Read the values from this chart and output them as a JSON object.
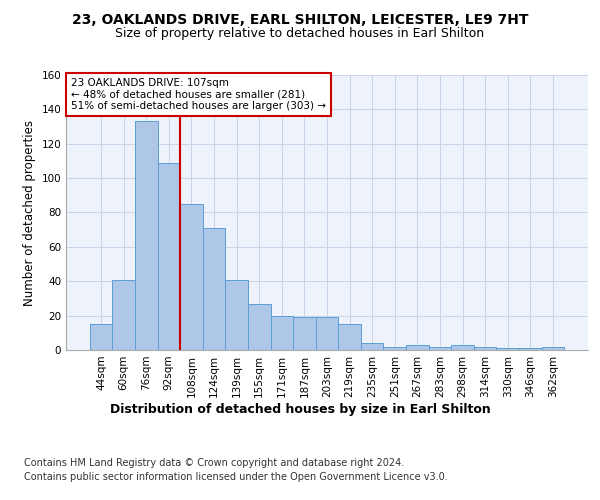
{
  "title": "23, OAKLANDS DRIVE, EARL SHILTON, LEICESTER, LE9 7HT",
  "subtitle": "Size of property relative to detached houses in Earl Shilton",
  "xlabel": "Distribution of detached houses by size in Earl Shilton",
  "ylabel": "Number of detached properties",
  "categories": [
    "44sqm",
    "60sqm",
    "76sqm",
    "92sqm",
    "108sqm",
    "124sqm",
    "139sqm",
    "155sqm",
    "171sqm",
    "187sqm",
    "203sqm",
    "219sqm",
    "235sqm",
    "251sqm",
    "267sqm",
    "283sqm",
    "298sqm",
    "314sqm",
    "330sqm",
    "346sqm",
    "362sqm"
  ],
  "values": [
    15,
    41,
    133,
    109,
    85,
    71,
    41,
    27,
    20,
    19,
    19,
    15,
    4,
    2,
    3,
    2,
    3,
    2,
    1,
    1,
    2
  ],
  "bar_color": "#aec6e8",
  "bar_edge_color": "#5a9fd4",
  "grid_color": "#c8d4e8",
  "bg_color": "#eef2fa",
  "property_line_x": 4,
  "property_line_color": "#cc0000",
  "annotation_text": "23 OAKLANDS DRIVE: 107sqm\n← 48% of detached houses are smaller (281)\n51% of semi-detached houses are larger (303) →",
  "annotation_box_color": "#ffffff",
  "annotation_box_edge": "#cc0000",
  "ylim": [
    0,
    160
  ],
  "yticks": [
    0,
    20,
    40,
    60,
    80,
    100,
    120,
    140,
    160
  ],
  "footer_line1": "Contains HM Land Registry data © Crown copyright and database right 2024.",
  "footer_line2": "Contains public sector information licensed under the Open Government Licence v3.0.",
  "title_fontsize": 10,
  "subtitle_fontsize": 9,
  "xlabel_fontsize": 9,
  "ylabel_fontsize": 8.5,
  "tick_fontsize": 7.5,
  "footer_fontsize": 7
}
